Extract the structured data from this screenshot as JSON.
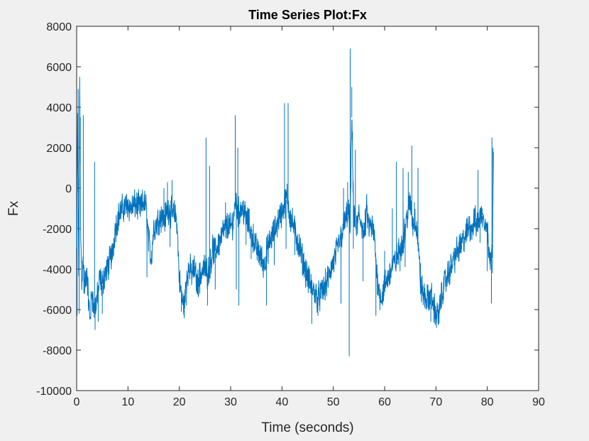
{
  "chart_data": {
    "type": "line",
    "title": "Time Series Plot:Fx",
    "xlabel": "Time (seconds)",
    "ylabel": "Fx",
    "xlim": [
      0,
      90
    ],
    "ylim": [
      -10000,
      8000
    ],
    "xticks": [
      0,
      10,
      20,
      30,
      40,
      50,
      60,
      70,
      80,
      90
    ],
    "yticks": [
      -10000,
      -8000,
      -6000,
      -4000,
      -2000,
      0,
      2000,
      4000,
      6000,
      8000
    ],
    "xtick_labels": [
      "0",
      "10",
      "20",
      "30",
      "40",
      "50",
      "60",
      "70",
      "80",
      "90"
    ],
    "ytick_labels": [
      "-10000",
      "-8000",
      "-6000",
      "-4000",
      "-2000",
      "0",
      "2000",
      "4000",
      "6000",
      "8000"
    ],
    "grid": false,
    "series_color": "#0072bd",
    "series": [
      {
        "x": [
          0.0,
          0.2,
          0.4,
          0.6,
          0.8,
          1.0,
          1.3,
          1.6,
          2.0,
          2.3,
          2.6,
          3.0,
          3.3,
          3.6,
          4.0,
          4.5,
          5.0,
          5.5,
          6.0,
          6.5,
          7.0,
          7.5,
          8.0,
          8.5,
          9.0,
          9.5,
          10.0,
          10.5,
          11.0,
          11.5,
          12.0,
          12.5,
          13.0,
          13.5,
          14.0,
          14.5,
          15.0,
          15.5,
          16.0,
          16.5,
          17.0,
          17.5,
          18.0,
          18.5,
          19.0,
          19.5,
          20.0,
          20.5,
          21.0,
          21.5,
          22.0,
          22.5,
          23.0,
          23.5,
          24.0,
          24.5,
          25.0,
          25.5,
          26.0,
          26.5,
          27.0,
          27.5,
          28.0,
          28.5,
          29.0,
          29.5,
          30.0,
          30.5,
          31.0,
          31.5,
          32.0,
          32.5,
          33.0,
          33.5,
          34.0,
          34.5,
          35.0,
          35.5,
          36.0,
          36.5,
          37.0,
          37.5,
          38.0,
          38.5,
          39.0,
          39.5,
          40.0,
          40.5,
          41.0,
          41.5,
          42.0,
          42.5,
          43.0,
          43.5,
          44.0,
          44.5,
          45.0,
          45.5,
          46.0,
          46.5,
          47.0,
          47.5,
          48.0,
          48.5,
          49.0,
          49.5,
          50.0,
          50.5,
          51.0,
          51.5,
          52.0,
          52.5,
          53.0,
          53.3,
          53.6,
          54.0,
          54.5,
          55.0,
          55.5,
          56.0,
          56.5,
          57.0,
          57.5,
          58.0,
          58.5,
          59.0,
          59.5,
          60.0,
          60.5,
          61.0,
          61.5,
          62.0,
          62.5,
          63.0,
          63.5,
          64.0,
          64.5,
          65.0,
          65.5,
          66.0,
          66.5,
          67.0,
          67.5,
          68.0,
          68.5,
          69.0,
          69.5,
          70.0,
          70.5,
          71.0,
          71.5,
          72.0,
          72.5,
          73.0,
          73.5,
          74.0,
          74.5,
          75.0,
          75.5,
          76.0,
          76.5,
          77.0,
          77.5,
          78.0,
          78.5,
          79.0,
          79.5,
          80.0,
          80.5,
          81.0,
          81.2
        ],
        "y": [
          -3000,
          3600,
          -4000,
          5000,
          -2500,
          -4500,
          -3500,
          -5000,
          -4000,
          -5500,
          -6500,
          -5000,
          -6000,
          -5800,
          -5500,
          -4500,
          -4800,
          -4200,
          -4000,
          -3500,
          -3200,
          -2000,
          -1500,
          -1200,
          -1000,
          -900,
          -800,
          -1000,
          -900,
          -800,
          -900,
          -1000,
          -700,
          -900,
          -2500,
          -3500,
          -2000,
          -1800,
          -1500,
          -1400,
          -1600,
          -1200,
          -1000,
          -1200,
          -1300,
          -1500,
          -4500,
          -5500,
          -5800,
          -4200,
          -4000,
          -4200,
          -4000,
          -4800,
          -4300,
          -4100,
          -3900,
          -4200,
          -3800,
          -3000,
          -3200,
          -2800,
          -2500,
          -2200,
          -2000,
          -1800,
          -2000,
          -1600,
          -500,
          -1200,
          -1000,
          -1100,
          -1500,
          -1700,
          -2200,
          -2500,
          -3000,
          -3200,
          -3500,
          -3800,
          -3200,
          -2800,
          -2400,
          -2200,
          -1800,
          -1400,
          -1200,
          -800,
          -400,
          -1300,
          -1700,
          -2100,
          -2600,
          -3000,
          -3500,
          -4000,
          -4400,
          -4800,
          -5000,
          -5200,
          -5400,
          -5300,
          -5000,
          -4800,
          -4500,
          -4000,
          -3700,
          -3300,
          -2800,
          -2400,
          -1900,
          -1500,
          -1100,
          -2000,
          3500,
          -1500,
          -2000,
          -1400,
          -1700,
          -2400,
          -1100,
          -2000,
          -1900,
          -2400,
          -4300,
          -5200,
          -5400,
          -4800,
          -4500,
          -4200,
          -3800,
          -3700,
          -3400,
          -3000,
          -2600,
          -2000,
          -1200,
          -700,
          -1800,
          -1500,
          -2500,
          -4800,
          -5200,
          -5500,
          -5500,
          -5200,
          -5800,
          -6200,
          -6300,
          -5500,
          -4800,
          -4500,
          -4200,
          -3800,
          -3500,
          -3200,
          -3000,
          -2800,
          -2500,
          -2200,
          -1800,
          -2000,
          -1600,
          -1800,
          -1400,
          -1300,
          -1500,
          -2200,
          -3200,
          -3500,
          1800
        ]
      }
    ],
    "annotations": [
      {
        "x": 0.1,
        "y": -6300
      },
      {
        "x": 0.3,
        "y": 4900
      },
      {
        "x": 0.5,
        "y": -6200
      },
      {
        "x": 0.7,
        "y": 3500
      },
      {
        "x": 1.3,
        "y": 3600
      },
      {
        "x": 1.4,
        "y": -5200
      },
      {
        "x": 3.5,
        "y": 1300
      },
      {
        "x": 3.6,
        "y": -7000
      },
      {
        "x": 4.2,
        "y": -6600
      },
      {
        "x": 5.0,
        "y": -6200
      },
      {
        "x": 13.7,
        "y": -4400
      },
      {
        "x": 16.5,
        "y": -900
      },
      {
        "x": 17.0,
        "y": 0
      },
      {
        "x": 17.7,
        "y": 300
      },
      {
        "x": 18.2,
        "y": -2900
      },
      {
        "x": 18.6,
        "y": 400
      },
      {
        "x": 19.0,
        "y": -1500
      },
      {
        "x": 20.4,
        "y": -6100
      },
      {
        "x": 21.4,
        "y": -5800
      },
      {
        "x": 24.0,
        "y": -5200
      },
      {
        "x": 25.2,
        "y": 2500
      },
      {
        "x": 25.5,
        "y": -5800
      },
      {
        "x": 25.9,
        "y": 1100
      },
      {
        "x": 27.0,
        "y": -5000
      },
      {
        "x": 29.0,
        "y": -700
      },
      {
        "x": 30.9,
        "y": 3600
      },
      {
        "x": 31.1,
        "y": -5000
      },
      {
        "x": 31.4,
        "y": 2000
      },
      {
        "x": 31.6,
        "y": -5800
      },
      {
        "x": 32.5,
        "y": -600
      },
      {
        "x": 33.0,
        "y": -2800
      },
      {
        "x": 34.0,
        "y": -3500
      },
      {
        "x": 37.0,
        "y": -5800
      },
      {
        "x": 38.5,
        "y": -3800
      },
      {
        "x": 40.5,
        "y": 4200
      },
      {
        "x": 40.8,
        "y": -3000
      },
      {
        "x": 41.2,
        "y": 4200
      },
      {
        "x": 41.6,
        "y": -1200
      },
      {
        "x": 42.5,
        "y": -3300
      },
      {
        "x": 44.0,
        "y": -4300
      },
      {
        "x": 45.8,
        "y": -6700
      },
      {
        "x": 47.0,
        "y": -6300
      },
      {
        "x": 49.0,
        "y": -4800
      },
      {
        "x": 50.5,
        "y": -2600
      },
      {
        "x": 51.5,
        "y": -5700
      },
      {
        "x": 52.0,
        "y": 0
      },
      {
        "x": 52.8,
        "y": 300
      },
      {
        "x": 53.1,
        "y": -8300
      },
      {
        "x": 53.3,
        "y": 6900
      },
      {
        "x": 53.6,
        "y": 5000
      },
      {
        "x": 53.9,
        "y": -3000
      },
      {
        "x": 54.3,
        "y": 1900
      },
      {
        "x": 55.0,
        "y": -800
      },
      {
        "x": 55.8,
        "y": -4600
      },
      {
        "x": 57.0,
        "y": -2000
      },
      {
        "x": 58.3,
        "y": -6300
      },
      {
        "x": 59.2,
        "y": -5500
      },
      {
        "x": 60.0,
        "y": -3100
      },
      {
        "x": 61.5,
        "y": -1000
      },
      {
        "x": 62.3,
        "y": 1300
      },
      {
        "x": 63.0,
        "y": -4100
      },
      {
        "x": 63.6,
        "y": 1000
      },
      {
        "x": 64.0,
        "y": -3900
      },
      {
        "x": 64.6,
        "y": 800
      },
      {
        "x": 65.3,
        "y": 2100
      },
      {
        "x": 65.8,
        "y": -700
      },
      {
        "x": 66.5,
        "y": 1000
      },
      {
        "x": 67.0,
        "y": -3700
      },
      {
        "x": 67.8,
        "y": -5500
      },
      {
        "x": 69.0,
        "y": -6600
      },
      {
        "x": 70.1,
        "y": -6900
      },
      {
        "x": 70.6,
        "y": -6700
      },
      {
        "x": 71.5,
        "y": -5000
      },
      {
        "x": 73.0,
        "y": -4200
      },
      {
        "x": 75.0,
        "y": -3000
      },
      {
        "x": 77.0,
        "y": -1800
      },
      {
        "x": 78.2,
        "y": 900
      },
      {
        "x": 78.6,
        "y": -2700
      },
      {
        "x": 79.0,
        "y": -1000
      },
      {
        "x": 80.0,
        "y": -4100
      },
      {
        "x": 80.5,
        "y": -3200
      },
      {
        "x": 80.8,
        "y": -5700
      },
      {
        "x": 80.9,
        "y": 2500
      },
      {
        "x": 81.0,
        "y": -4200
      },
      {
        "x": 81.1,
        "y": 2000
      }
    ]
  }
}
